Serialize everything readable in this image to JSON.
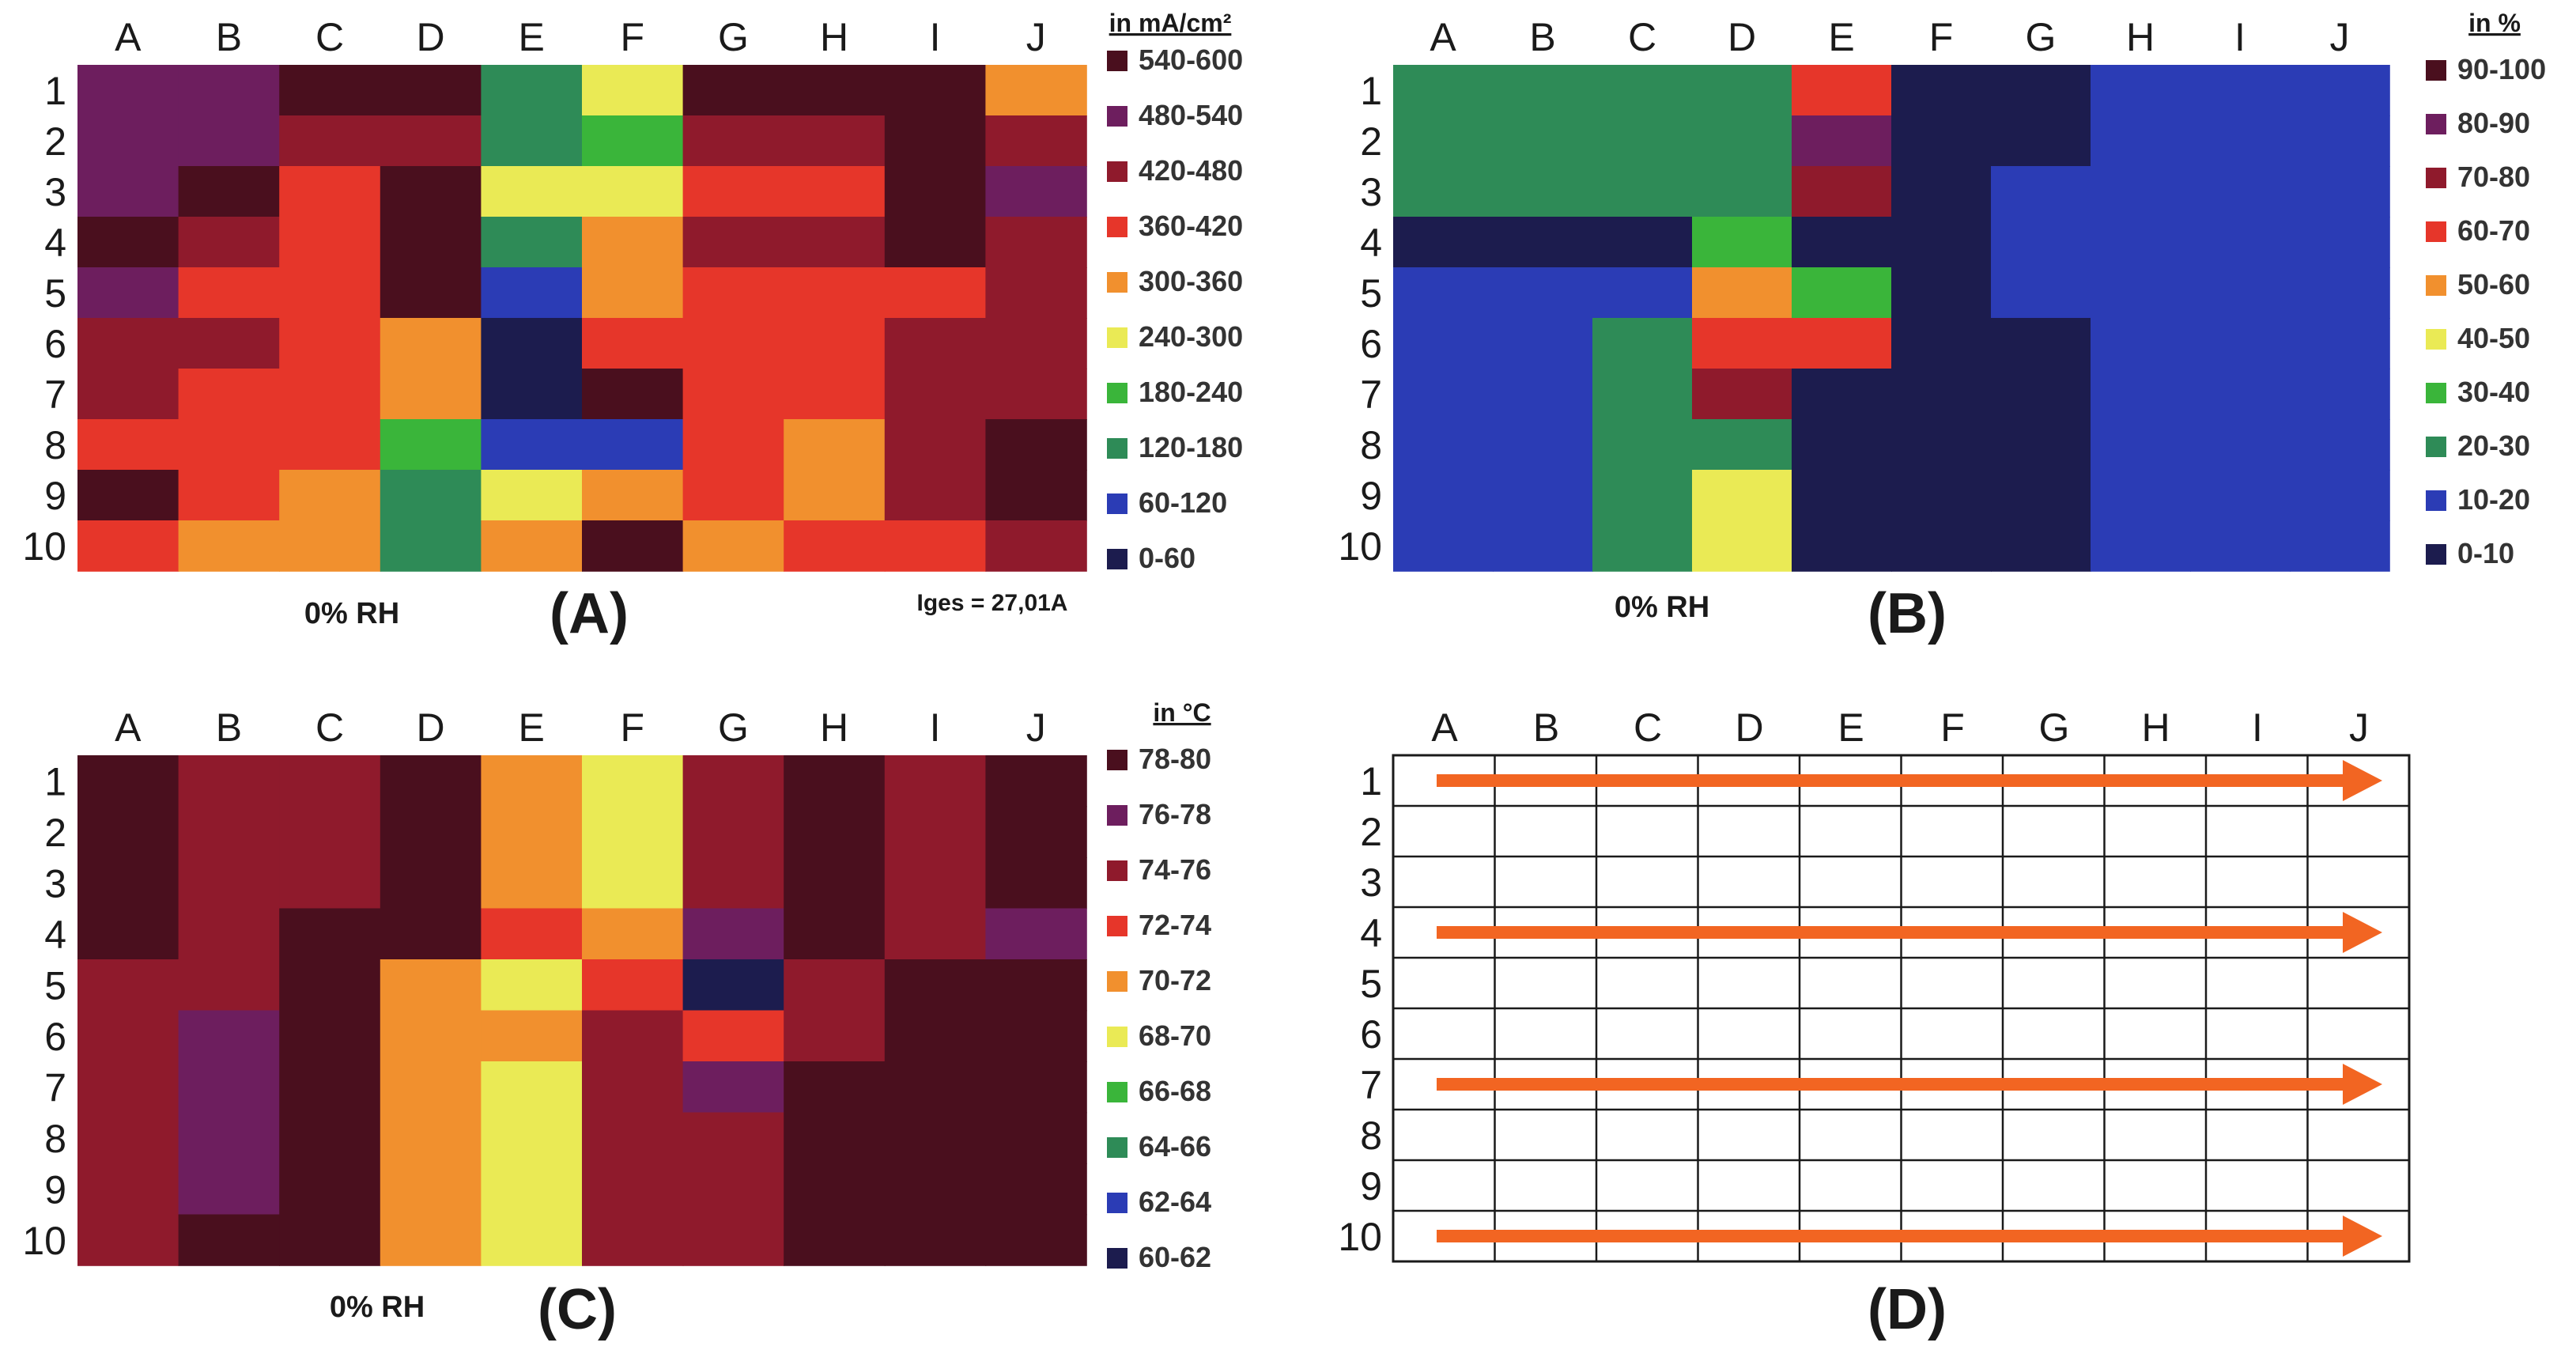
{
  "columns": [
    "A",
    "B",
    "C",
    "D",
    "E",
    "F",
    "G",
    "H",
    "I",
    "J"
  ],
  "rows": [
    "1",
    "2",
    "3",
    "4",
    "5",
    "6",
    "7",
    "8",
    "9",
    "10"
  ],
  "chart_data": [
    {
      "id": "A",
      "type": "heatmap",
      "panel_label": "(A)",
      "condition": "0% RH",
      "note": "Iges = 27,01A",
      "legend_title": "in mA/cm²",
      "legend": [
        {
          "label": "540-600",
          "color": "#4a0f1e"
        },
        {
          "label": "480-540",
          "color": "#6d1e5e"
        },
        {
          "label": "420-480",
          "color": "#8f1a2c"
        },
        {
          "label": "360-420",
          "color": "#e6362a"
        },
        {
          "label": "300-360",
          "color": "#f1902e"
        },
        {
          "label": "240-300",
          "color": "#eaea55"
        },
        {
          "label": "180-240",
          "color": "#3ab53a"
        },
        {
          "label": "120-180",
          "color": "#2e8b57"
        },
        {
          "label": "60-120",
          "color": "#2b3cb5"
        },
        {
          "label": "0-60",
          "color": "#1c1c4e"
        }
      ],
      "values": [
        [
          1,
          1,
          0,
          0,
          7,
          5,
          0,
          0,
          0,
          4
        ],
        [
          1,
          1,
          2,
          2,
          7,
          6,
          2,
          2,
          0,
          2
        ],
        [
          1,
          0,
          3,
          0,
          5,
          5,
          3,
          3,
          0,
          1
        ],
        [
          0,
          2,
          3,
          0,
          7,
          4,
          2,
          2,
          0,
          2
        ],
        [
          1,
          3,
          3,
          0,
          8,
          4,
          3,
          3,
          3,
          2
        ],
        [
          2,
          2,
          3,
          4,
          9,
          3,
          3,
          3,
          2,
          2
        ],
        [
          2,
          3,
          3,
          4,
          9,
          0,
          3,
          3,
          2,
          2
        ],
        [
          3,
          3,
          3,
          6,
          8,
          8,
          3,
          4,
          2,
          0
        ],
        [
          0,
          3,
          4,
          7,
          5,
          4,
          3,
          4,
          2,
          0
        ],
        [
          3,
          4,
          4,
          7,
          4,
          0,
          4,
          3,
          3,
          2
        ]
      ]
    },
    {
      "id": "B",
      "type": "heatmap",
      "panel_label": "(B)",
      "condition": "0% RH",
      "legend_title": "in %",
      "legend": [
        {
          "label": "90-100",
          "color": "#4a0f1e"
        },
        {
          "label": "80-90",
          "color": "#6d1e5e"
        },
        {
          "label": "70-80",
          "color": "#8f1a2c"
        },
        {
          "label": "60-70",
          "color": "#e6362a"
        },
        {
          "label": "50-60",
          "color": "#f1902e"
        },
        {
          "label": "40-50",
          "color": "#eaea55"
        },
        {
          "label": "30-40",
          "color": "#3ab53a"
        },
        {
          "label": "20-30",
          "color": "#2e8b57"
        },
        {
          "label": "10-20",
          "color": "#2b3cb5"
        },
        {
          "label": "0-10",
          "color": "#1c1c4e"
        }
      ],
      "values": [
        [
          7,
          7,
          7,
          7,
          3,
          9,
          9,
          8,
          8,
          8
        ],
        [
          7,
          7,
          7,
          7,
          1,
          9,
          9,
          8,
          8,
          8
        ],
        [
          7,
          7,
          7,
          7,
          2,
          9,
          8,
          8,
          8,
          8
        ],
        [
          9,
          9,
          9,
          6,
          9,
          9,
          8,
          8,
          8,
          8
        ],
        [
          8,
          8,
          8,
          4,
          6,
          9,
          8,
          8,
          8,
          8
        ],
        [
          8,
          8,
          7,
          3,
          3,
          9,
          9,
          8,
          8,
          8
        ],
        [
          8,
          8,
          7,
          2,
          9,
          9,
          9,
          8,
          8,
          8
        ],
        [
          8,
          8,
          7,
          7,
          9,
          9,
          9,
          8,
          8,
          8
        ],
        [
          8,
          8,
          7,
          5,
          9,
          9,
          9,
          8,
          8,
          8
        ],
        [
          8,
          8,
          7,
          5,
          9,
          9,
          9,
          8,
          8,
          8
        ]
      ]
    },
    {
      "id": "C",
      "type": "heatmap",
      "panel_label": "(C)",
      "condition": "0% RH",
      "legend_title": "in °C",
      "legend": [
        {
          "label": "78-80",
          "color": "#4a0f1e"
        },
        {
          "label": "76-78",
          "color": "#6d1e5e"
        },
        {
          "label": "74-76",
          "color": "#8f1a2c"
        },
        {
          "label": "72-74",
          "color": "#e6362a"
        },
        {
          "label": "70-72",
          "color": "#f1902e"
        },
        {
          "label": "68-70",
          "color": "#eaea55"
        },
        {
          "label": "66-68",
          "color": "#3ab53a"
        },
        {
          "label": "64-66",
          "color": "#2e8b57"
        },
        {
          "label": "62-64",
          "color": "#2b3cb5"
        },
        {
          "label": "60-62",
          "color": "#1c1c4e"
        }
      ],
      "values": [
        [
          0,
          2,
          2,
          0,
          4,
          5,
          2,
          0,
          2,
          0
        ],
        [
          0,
          2,
          2,
          0,
          4,
          5,
          2,
          0,
          2,
          0
        ],
        [
          0,
          2,
          2,
          0,
          4,
          5,
          2,
          0,
          2,
          0
        ],
        [
          0,
          2,
          0,
          0,
          3,
          4,
          1,
          0,
          2,
          1
        ],
        [
          2,
          2,
          0,
          4,
          5,
          3,
          9,
          2,
          0,
          0
        ],
        [
          2,
          1,
          0,
          4,
          4,
          2,
          3,
          2,
          0,
          0
        ],
        [
          2,
          1,
          0,
          4,
          5,
          2,
          1,
          0,
          0,
          0
        ],
        [
          2,
          1,
          0,
          4,
          5,
          2,
          2,
          0,
          0,
          0
        ],
        [
          2,
          1,
          0,
          4,
          5,
          2,
          2,
          0,
          0,
          0
        ],
        [
          2,
          0,
          0,
          4,
          5,
          2,
          2,
          0,
          0,
          0
        ]
      ]
    }
  ],
  "diagram_d": {
    "panel_label": "(D)",
    "arrow_rows": [
      "1",
      "4",
      "7",
      "10"
    ],
    "arrow_color": "#f26522"
  }
}
